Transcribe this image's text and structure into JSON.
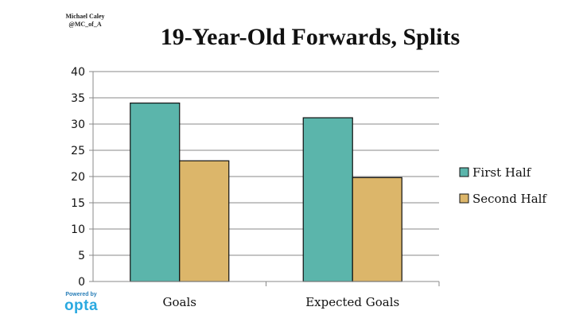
{
  "credit": {
    "author": "Michael Caley",
    "handle": "@MC_of_A"
  },
  "logo": {
    "powered_by": "Powered by",
    "brand": "opta"
  },
  "colors": {
    "first_half": "#5bb5ab",
    "second_half": "#dcb66a",
    "grid": "#8a8a8a",
    "bar_stroke": "#111111",
    "brand": "#2aa9e0"
  },
  "chart_data": {
    "type": "bar",
    "title": "19-Year-Old Forwards, Splits",
    "xlabel": "",
    "ylabel": "",
    "categories": [
      "Goals",
      "Expected Goals"
    ],
    "series": [
      {
        "name": "First Half",
        "values": [
          34,
          31.2
        ]
      },
      {
        "name": "Second Half",
        "values": [
          23,
          19.8
        ]
      }
    ],
    "ylim": [
      0,
      40
    ],
    "yticks": [
      0,
      5,
      10,
      15,
      20,
      25,
      30,
      35,
      40
    ],
    "grid": true,
    "legend": "right"
  }
}
